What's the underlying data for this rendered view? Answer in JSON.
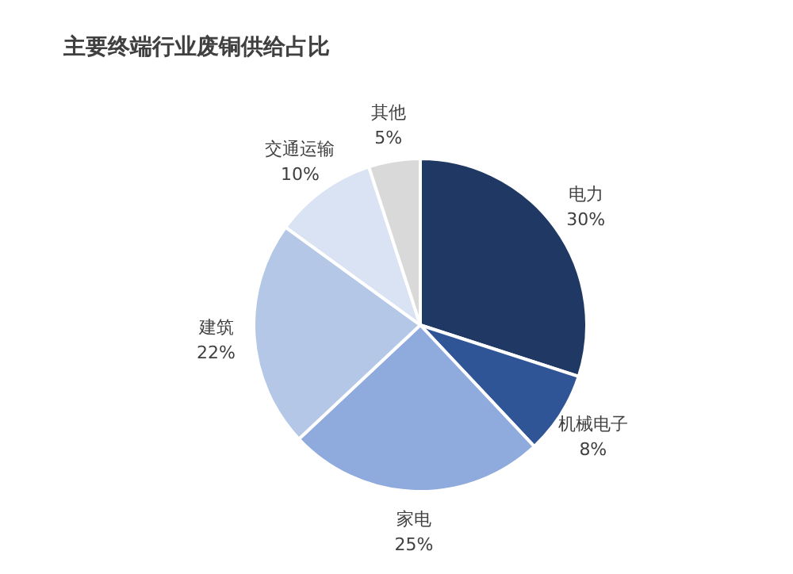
{
  "chart_data": {
    "type": "pie",
    "title": "主要终端行业废铜供给占比",
    "categories": [
      "电力",
      "机械电子",
      "家电",
      "建筑",
      "交通运输",
      "其他"
    ],
    "values": [
      30,
      8,
      25,
      22,
      10,
      5
    ],
    "value_labels": [
      "30%",
      "8%",
      "25%",
      "22%",
      "10%",
      "5%"
    ],
    "colors": [
      "#1f3864",
      "#2f5597",
      "#8faadc",
      "#b4c7e7",
      "#dae3f3",
      "#d9d9d9"
    ],
    "legend": false
  }
}
